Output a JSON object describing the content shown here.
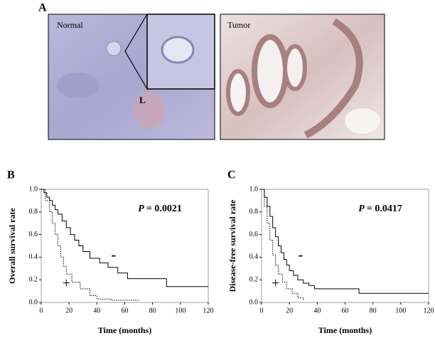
{
  "figure": {
    "panel_label": "A",
    "normal_label": "Normal",
    "tumor_label": "Tumor",
    "islet_label": "L"
  },
  "chart_data": [
    {
      "type": "step",
      "panel_label": "B",
      "y_label": "Overall survival rate",
      "x_label": "Time (months)",
      "p_italic": "P",
      "p_value": "= 0.0021",
      "xlim": [
        0,
        120
      ],
      "xticks": [
        0,
        20,
        40,
        60,
        80,
        100,
        120
      ],
      "ylim": [
        0,
        1
      ],
      "yticks": [
        {
          "value": 0,
          "label": "0.0"
        },
        0.2,
        0.4,
        0.6,
        0.8,
        {
          "value": 1,
          "label": "1.0"
        }
      ],
      "series": [
        {
          "name": "-",
          "style": "solid",
          "color": "#000000",
          "x": [
            0,
            2,
            4,
            6,
            8,
            10,
            12,
            15,
            18,
            21,
            24,
            27,
            30,
            35,
            42,
            48,
            55,
            62,
            90,
            120
          ],
          "values": [
            1.0,
            0.97,
            0.93,
            0.9,
            0.86,
            0.82,
            0.78,
            0.72,
            0.66,
            0.6,
            0.55,
            0.5,
            0.45,
            0.39,
            0.35,
            0.31,
            0.26,
            0.21,
            0.14,
            0.14
          ]
        },
        {
          "name": "+",
          "style": "dotted",
          "color": "#000000",
          "x": [
            0,
            3,
            6,
            8,
            10,
            12,
            14,
            16,
            18,
            22,
            28,
            35,
            40,
            50,
            70
          ],
          "values": [
            1.0,
            0.9,
            0.8,
            0.7,
            0.6,
            0.5,
            0.4,
            0.32,
            0.25,
            0.18,
            0.12,
            0.06,
            0.03,
            0.02,
            0.02
          ]
        }
      ]
    },
    {
      "type": "step",
      "panel_label": "C",
      "y_label": "Disease-free survival rate",
      "x_label": "Time (months)",
      "p_italic": "P",
      "p_value": "= 0.0417",
      "xlim": [
        0,
        120
      ],
      "xticks": [
        0,
        20,
        40,
        60,
        80,
        100,
        120
      ],
      "ylim": [
        0,
        1
      ],
      "yticks": [
        {
          "value": 0,
          "label": "0.0"
        },
        0.2,
        0.4,
        0.6,
        0.8,
        {
          "value": 1,
          "label": "1.0"
        }
      ],
      "series": [
        {
          "name": "-",
          "style": "solid",
          "color": "#000000",
          "x": [
            0,
            2,
            4,
            6,
            8,
            10,
            12,
            14,
            16,
            18,
            20,
            23,
            26,
            30,
            34,
            38,
            70,
            120
          ],
          "values": [
            1.0,
            0.93,
            0.85,
            0.76,
            0.66,
            0.58,
            0.5,
            0.44,
            0.38,
            0.33,
            0.28,
            0.24,
            0.2,
            0.17,
            0.15,
            0.12,
            0.08,
            0.08
          ]
        },
        {
          "name": "+",
          "style": "dotted",
          "color": "#000000",
          "x": [
            0,
            2,
            4,
            6,
            8,
            10,
            12,
            15,
            18,
            22,
            26,
            30
          ],
          "values": [
            1.0,
            0.85,
            0.7,
            0.55,
            0.42,
            0.33,
            0.25,
            0.18,
            0.12,
            0.08,
            0.04,
            0.02
          ]
        }
      ]
    }
  ]
}
